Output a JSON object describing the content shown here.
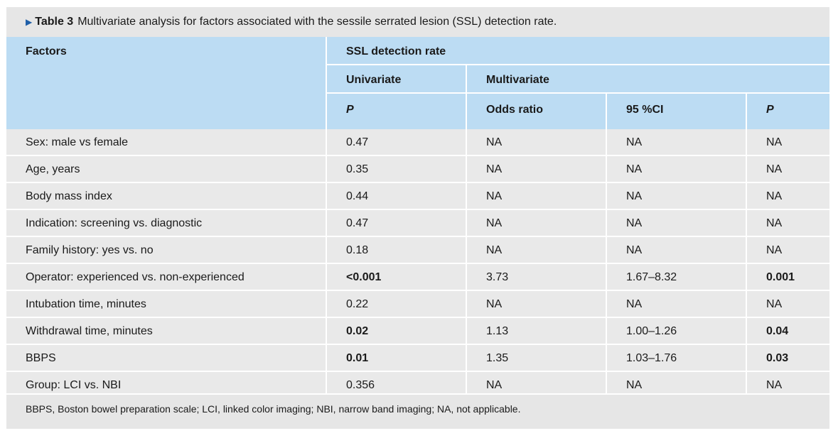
{
  "caption": {
    "marker": "▶",
    "label": "Table 3",
    "text": "Multivariate analysis for factors associated with the sessile serrated lesion (SSL) detection rate."
  },
  "header": {
    "factors": "Factors",
    "group": "SSL detection rate",
    "univariate": "Univariate",
    "multivariate": "Multivariate",
    "p_uni": "P",
    "odds_ratio": "Odds ratio",
    "ci": "95 %CI",
    "p_multi": "P"
  },
  "rows": [
    {
      "factor": "Sex: male vs female",
      "p_uni": "0.47",
      "odds": "NA",
      "ci": "NA",
      "p_multi": "NA",
      "bold_uni": false,
      "bold_multi": false
    },
    {
      "factor": "Age, years",
      "p_uni": "0.35",
      "odds": "NA",
      "ci": "NA",
      "p_multi": "NA",
      "bold_uni": false,
      "bold_multi": false
    },
    {
      "factor": "Body mass index",
      "p_uni": "0.44",
      "odds": "NA",
      "ci": "NA",
      "p_multi": "NA",
      "bold_uni": false,
      "bold_multi": false
    },
    {
      "factor": "Indication: screening vs. diagnostic",
      "p_uni": "0.47",
      "odds": "NA",
      "ci": "NA",
      "p_multi": "NA",
      "bold_uni": false,
      "bold_multi": false
    },
    {
      "factor": "Family history: yes vs. no",
      "p_uni": "0.18",
      "odds": "NA",
      "ci": "NA",
      "p_multi": "NA",
      "bold_uni": false,
      "bold_multi": false
    },
    {
      "factor": "Operator: experienced vs. non-experienced",
      "p_uni": "<0.001",
      "odds": "3.73",
      "ci": "1.67–8.32",
      "p_multi": "0.001",
      "bold_uni": true,
      "bold_multi": true
    },
    {
      "factor": "Intubation time, minutes",
      "p_uni": "0.22",
      "odds": "NA",
      "ci": "NA",
      "p_multi": "NA",
      "bold_uni": false,
      "bold_multi": false
    },
    {
      "factor": "Withdrawal time, minutes",
      "p_uni": "0.02",
      "odds": "1.13",
      "ci": "1.00–1.26",
      "p_multi": "0.04",
      "bold_uni": true,
      "bold_multi": true
    },
    {
      "factor": "BBPS",
      "p_uni": "0.01",
      "odds": "1.35",
      "ci": "1.03–1.76",
      "p_multi": "0.03",
      "bold_uni": true,
      "bold_multi": true
    },
    {
      "factor": "Group: LCI vs. NBI",
      "p_uni": "0.356",
      "odds": "NA",
      "ci": "NA",
      "p_multi": "NA",
      "bold_uni": false,
      "bold_multi": false
    }
  ],
  "footnote": "BBPS, Boston bowel preparation scale; LCI, linked color imaging; NBI, narrow band imaging; NA, not applicable.",
  "colors": {
    "header_bg": "#bcdcf3",
    "row_bg": "#e9e9e9",
    "marker": "#1f5fa8"
  }
}
